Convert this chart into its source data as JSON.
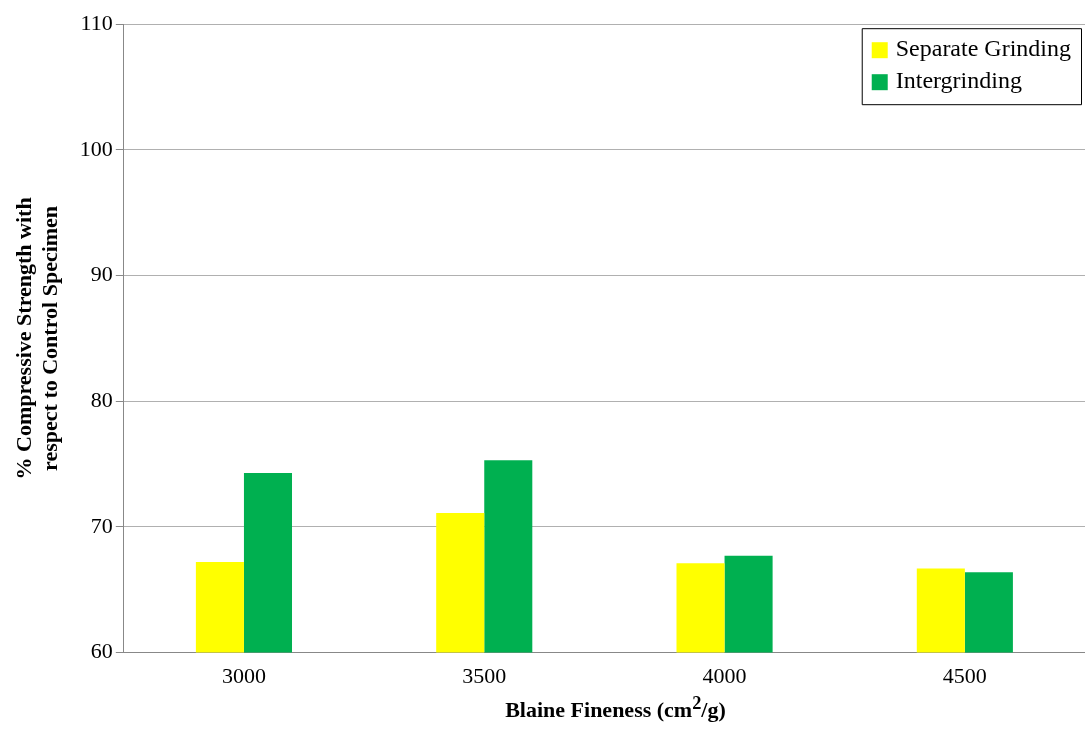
{
  "chart_data": {
    "type": "bar",
    "xlabel": "Blaine Fineness (cm$^{2}$/g)",
    "ylabel": "% Compressive Strength with respect to Control Specimen",
    "categories": [
      "3000",
      "3500",
      "4000",
      "4500"
    ],
    "series": [
      {
        "name": "Separate Grinding",
        "color": "#ffff00",
        "values": [
          67.2,
          71.1,
          67.1,
          66.7
        ]
      },
      {
        "name": "Intergrinding",
        "color": "#00b050",
        "values": [
          74.3,
          75.3,
          67.7,
          66.4
        ]
      }
    ],
    "ylim": [
      60,
      110
    ],
    "yticks": [
      60,
      70,
      80,
      90,
      100,
      110
    ],
    "grid": "y",
    "legend": "top right"
  }
}
